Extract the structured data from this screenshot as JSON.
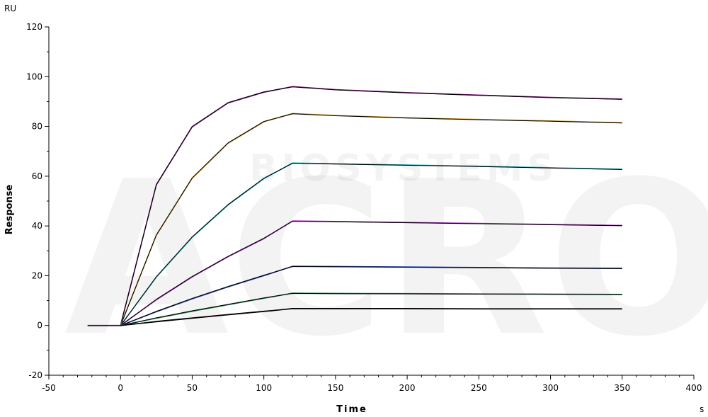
{
  "chart_data": {
    "type": "line",
    "title": "",
    "xlabel": "Time",
    "ylabel": "Response",
    "x_unit": "s",
    "y_unit": "RU",
    "xlim": [
      -50,
      400
    ],
    "ylim": [
      -20,
      120
    ],
    "x_ticks": [
      -50,
      0,
      50,
      100,
      150,
      200,
      250,
      300,
      350,
      400
    ],
    "y_ticks": [
      -20,
      0,
      20,
      40,
      60,
      80,
      100,
      120
    ],
    "grid": false,
    "legend": "none",
    "watermark": [
      "ACRO",
      "BIOSYSTEMS"
    ],
    "series": [
      {
        "color": "#8b1a8b",
        "fit_color": "#000000",
        "x": [
          -23,
          0,
          25,
          50,
          75,
          100,
          120,
          150,
          200,
          250,
          300,
          350
        ],
        "y": [
          0,
          0,
          56.5,
          79.8,
          89.4,
          93.7,
          96.0,
          94.8,
          93.6,
          92.6,
          91.7,
          91.0
        ]
      },
      {
        "color": "#d9a02a",
        "fit_color": "#000000",
        "x": [
          0,
          25,
          50,
          75,
          100,
          120,
          150,
          200,
          250,
          300,
          350
        ],
        "y": [
          0,
          36.2,
          59.1,
          73.2,
          81.8,
          85.2,
          84.4,
          83.5,
          82.8,
          82.2,
          81.5
        ]
      },
      {
        "color": "#1cb8c4",
        "fit_color": "#000000",
        "x": [
          0,
          25,
          50,
          75,
          100,
          120,
          150,
          200,
          250,
          300,
          350
        ],
        "y": [
          0,
          19.4,
          35.4,
          48.4,
          59.0,
          65.3,
          65.0,
          64.5,
          64.0,
          63.4,
          62.8
        ]
      },
      {
        "color": "#b02ac8",
        "fit_color": "#000000",
        "x": [
          0,
          25,
          50,
          75,
          100,
          120,
          150,
          200,
          250,
          300,
          350
        ],
        "y": [
          0,
          10.3,
          19.5,
          27.6,
          34.9,
          42.0,
          41.8,
          41.4,
          41.0,
          40.6,
          40.2
        ]
      },
      {
        "color": "#1f3fb0",
        "fit_color": "#000000",
        "x": [
          0,
          25,
          50,
          75,
          100,
          120,
          150,
          200,
          250,
          300,
          350
        ],
        "y": [
          0,
          5.5,
          10.7,
          15.5,
          20.0,
          23.8,
          23.7,
          23.5,
          23.3,
          23.1,
          23.0
        ]
      },
      {
        "color": "#1f8a4c",
        "fit_color": "#000000",
        "x": [
          0,
          25,
          50,
          75,
          100,
          120,
          150,
          200,
          250,
          300,
          350
        ],
        "y": [
          0,
          2.9,
          5.7,
          8.3,
          10.9,
          13.0,
          12.9,
          12.8,
          12.7,
          12.6,
          12.5
        ]
      },
      {
        "color": "#000000",
        "fit_color": "#000000",
        "x": [
          0,
          25,
          50,
          75,
          100,
          120,
          150,
          200,
          250,
          300,
          350
        ],
        "y": [
          0,
          1.5,
          2.9,
          4.3,
          5.6,
          6.8,
          6.8,
          6.8,
          6.7,
          6.7,
          6.7
        ]
      }
    ]
  }
}
